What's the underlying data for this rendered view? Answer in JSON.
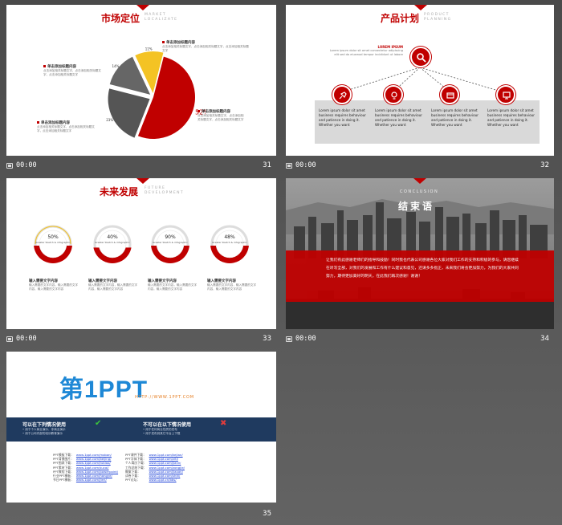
{
  "meta": {
    "time": "00:00"
  },
  "slides": [
    {
      "number": "31",
      "title_cn": "市场定位",
      "title_en": "MARKET LOCALIZATE",
      "chart_data": {
        "type": "pie",
        "slices": [
          {
            "label": "52%",
            "value": 52,
            "color": "#c00000"
          },
          {
            "label": "23%",
            "value": 23,
            "color": "#555555"
          },
          {
            "label": "14%",
            "value": 14,
            "color": "#666666"
          },
          {
            "label": "11%",
            "value": 11,
            "color": "#f4c324"
          }
        ]
      },
      "items": [
        {
          "title": "单击添加标题内容",
          "text": "点击添加相关标题文字，点击添加相关标题文字，点击添加相关标题文字"
        },
        {
          "title": "单击添加标题内容",
          "text": "点击添加相关标题文字，点击添加相关标题文字，点击添加相关标题文字"
        },
        {
          "title": "单击添加标题内容",
          "text": "点击添加相关标题文字，点击添加相关标题文字，点击添加相关标题文字"
        },
        {
          "title": "单击添加标题内容",
          "text": "点击添加相关标题文字，点击添加相关标题文字，点击添加相关标题文字"
        }
      ]
    },
    {
      "number": "32",
      "title_cn": "产品计划",
      "title_en": "PRODUCT PLANNING",
      "top_title": "LOREM IPSUM",
      "top_text": "Lorem ipsum dolor sit amet consectetur adipiscing elit sed do eiusmod tempor incididunt ut labore",
      "boxes": [
        {
          "text": "Lorem ipsum dolor sit amet business requires behaviour and patience in doing it. Whether you want"
        },
        {
          "text": "Lorem ipsum dolor sit amet business requires behaviour and patience in doing it. Whether you want"
        },
        {
          "text": "Lorem ipsum dolor sit amet business requires behaviour and patience in doing it. Whether you want"
        },
        {
          "text": "Lorem ipsum dolor sit amet business requires behaviour and patience in doing it. Whether you want"
        }
      ]
    },
    {
      "number": "33",
      "title_cn": "未来发展",
      "title_en": "FUTURE DEVELOPMENT",
      "gauges": [
        {
          "pct": "50%",
          "value": 0.5,
          "sub": "Greater Sketch & infographic"
        },
        {
          "pct": "40%",
          "value": 0.4,
          "sub": "Greater Sketch & infographic"
        },
        {
          "pct": "90%",
          "value": 0.9,
          "sub": "Greater Sketch & infographic"
        },
        {
          "pct": "48%",
          "value": 0.48,
          "sub": "Greater Sketch & infographic"
        }
      ],
      "items": [
        {
          "title": "输入需要文字内容",
          "text": "输入需要的文字内容，输入需要的文字内容，输入需要的文字内容"
        },
        {
          "title": "输入需要文字内容",
          "text": "输入需要的文字内容，输入需要的文字内容，输入需要的文字内容"
        },
        {
          "title": "输入需要文字内容",
          "text": "输入需要的文字内容，输入需要的文字内容，输入需要的文字内容"
        },
        {
          "title": "输入需要文字内容",
          "text": "输入需要的文字内容，输入需要的文字内容，输入需要的文字内容"
        }
      ]
    },
    {
      "number": "34",
      "conclusion_en": "CONCLUSION",
      "title_cn": "结束语",
      "body": "让我们有此感谢老师们的指导和鼓励！同时我也代表公司感谢各位大家对我们工作的支持和积极的参与，请您继续在听写全部，对我们的发展和工作有什么建议和意见，还请多多指正，未来我们将会更加努力，为我们的大家共同努力，期待更加美好的明天，在此我们再次感谢！谢谢！"
    },
    {
      "number": "35",
      "logo_text": "第1PPT",
      "logo_url": "HTTP://WWW.1PPT.COM",
      "can_title": "可以在下列情况使用",
      "can_items": [
        "• 用于个人商业演示、非商业演示",
        "• 用于公司内部的培训教育演示"
      ],
      "cannot_title": "不可以在以下情况使用",
      "cannot_items": [
        "• 用于任何商业性质的发布",
        "• 用于发布到其它平台上下载"
      ],
      "link_labels": [
        "PPT模板下载：",
        "PPT背景图片：",
        "PPT图表下载：",
        "PPT素材下载：",
        "PPT教程下载：",
        "行业PPT模板：",
        "节日PPT模板："
      ],
      "links": [
        "www.1ppt.com/moban/",
        "www.1ppt.com/beijing/",
        "www.1ppt.com/tubiao/",
        "www.1ppt.com/sucai/",
        "www.1ppt.com/powerpoint/",
        "www.1ppt.com/hangye/",
        "www.1ppt.com/jieri/"
      ],
      "link_labels2": [
        "PPT课件下载：",
        "PPT字体下载：",
        "个人简历下载：",
        "工作总结下载：",
        "教案下载：",
        "试卷下载：",
        "PPT论坛："
      ],
      "links2": [
        "www.1ppt.com/kejian/",
        "www.1ppt.com/ziti/",
        "www.1ppt.com/jianli/",
        "www.1ppt.com/zongjie/",
        "www.1ppt.com/jiaoan/",
        "www.1ppt.com/shiti/",
        "www.1ppt.cn/bbs/"
      ]
    }
  ],
  "colors": {
    "accent": "#c00000",
    "dark": "#222222",
    "navy": "#1f3a5f"
  }
}
